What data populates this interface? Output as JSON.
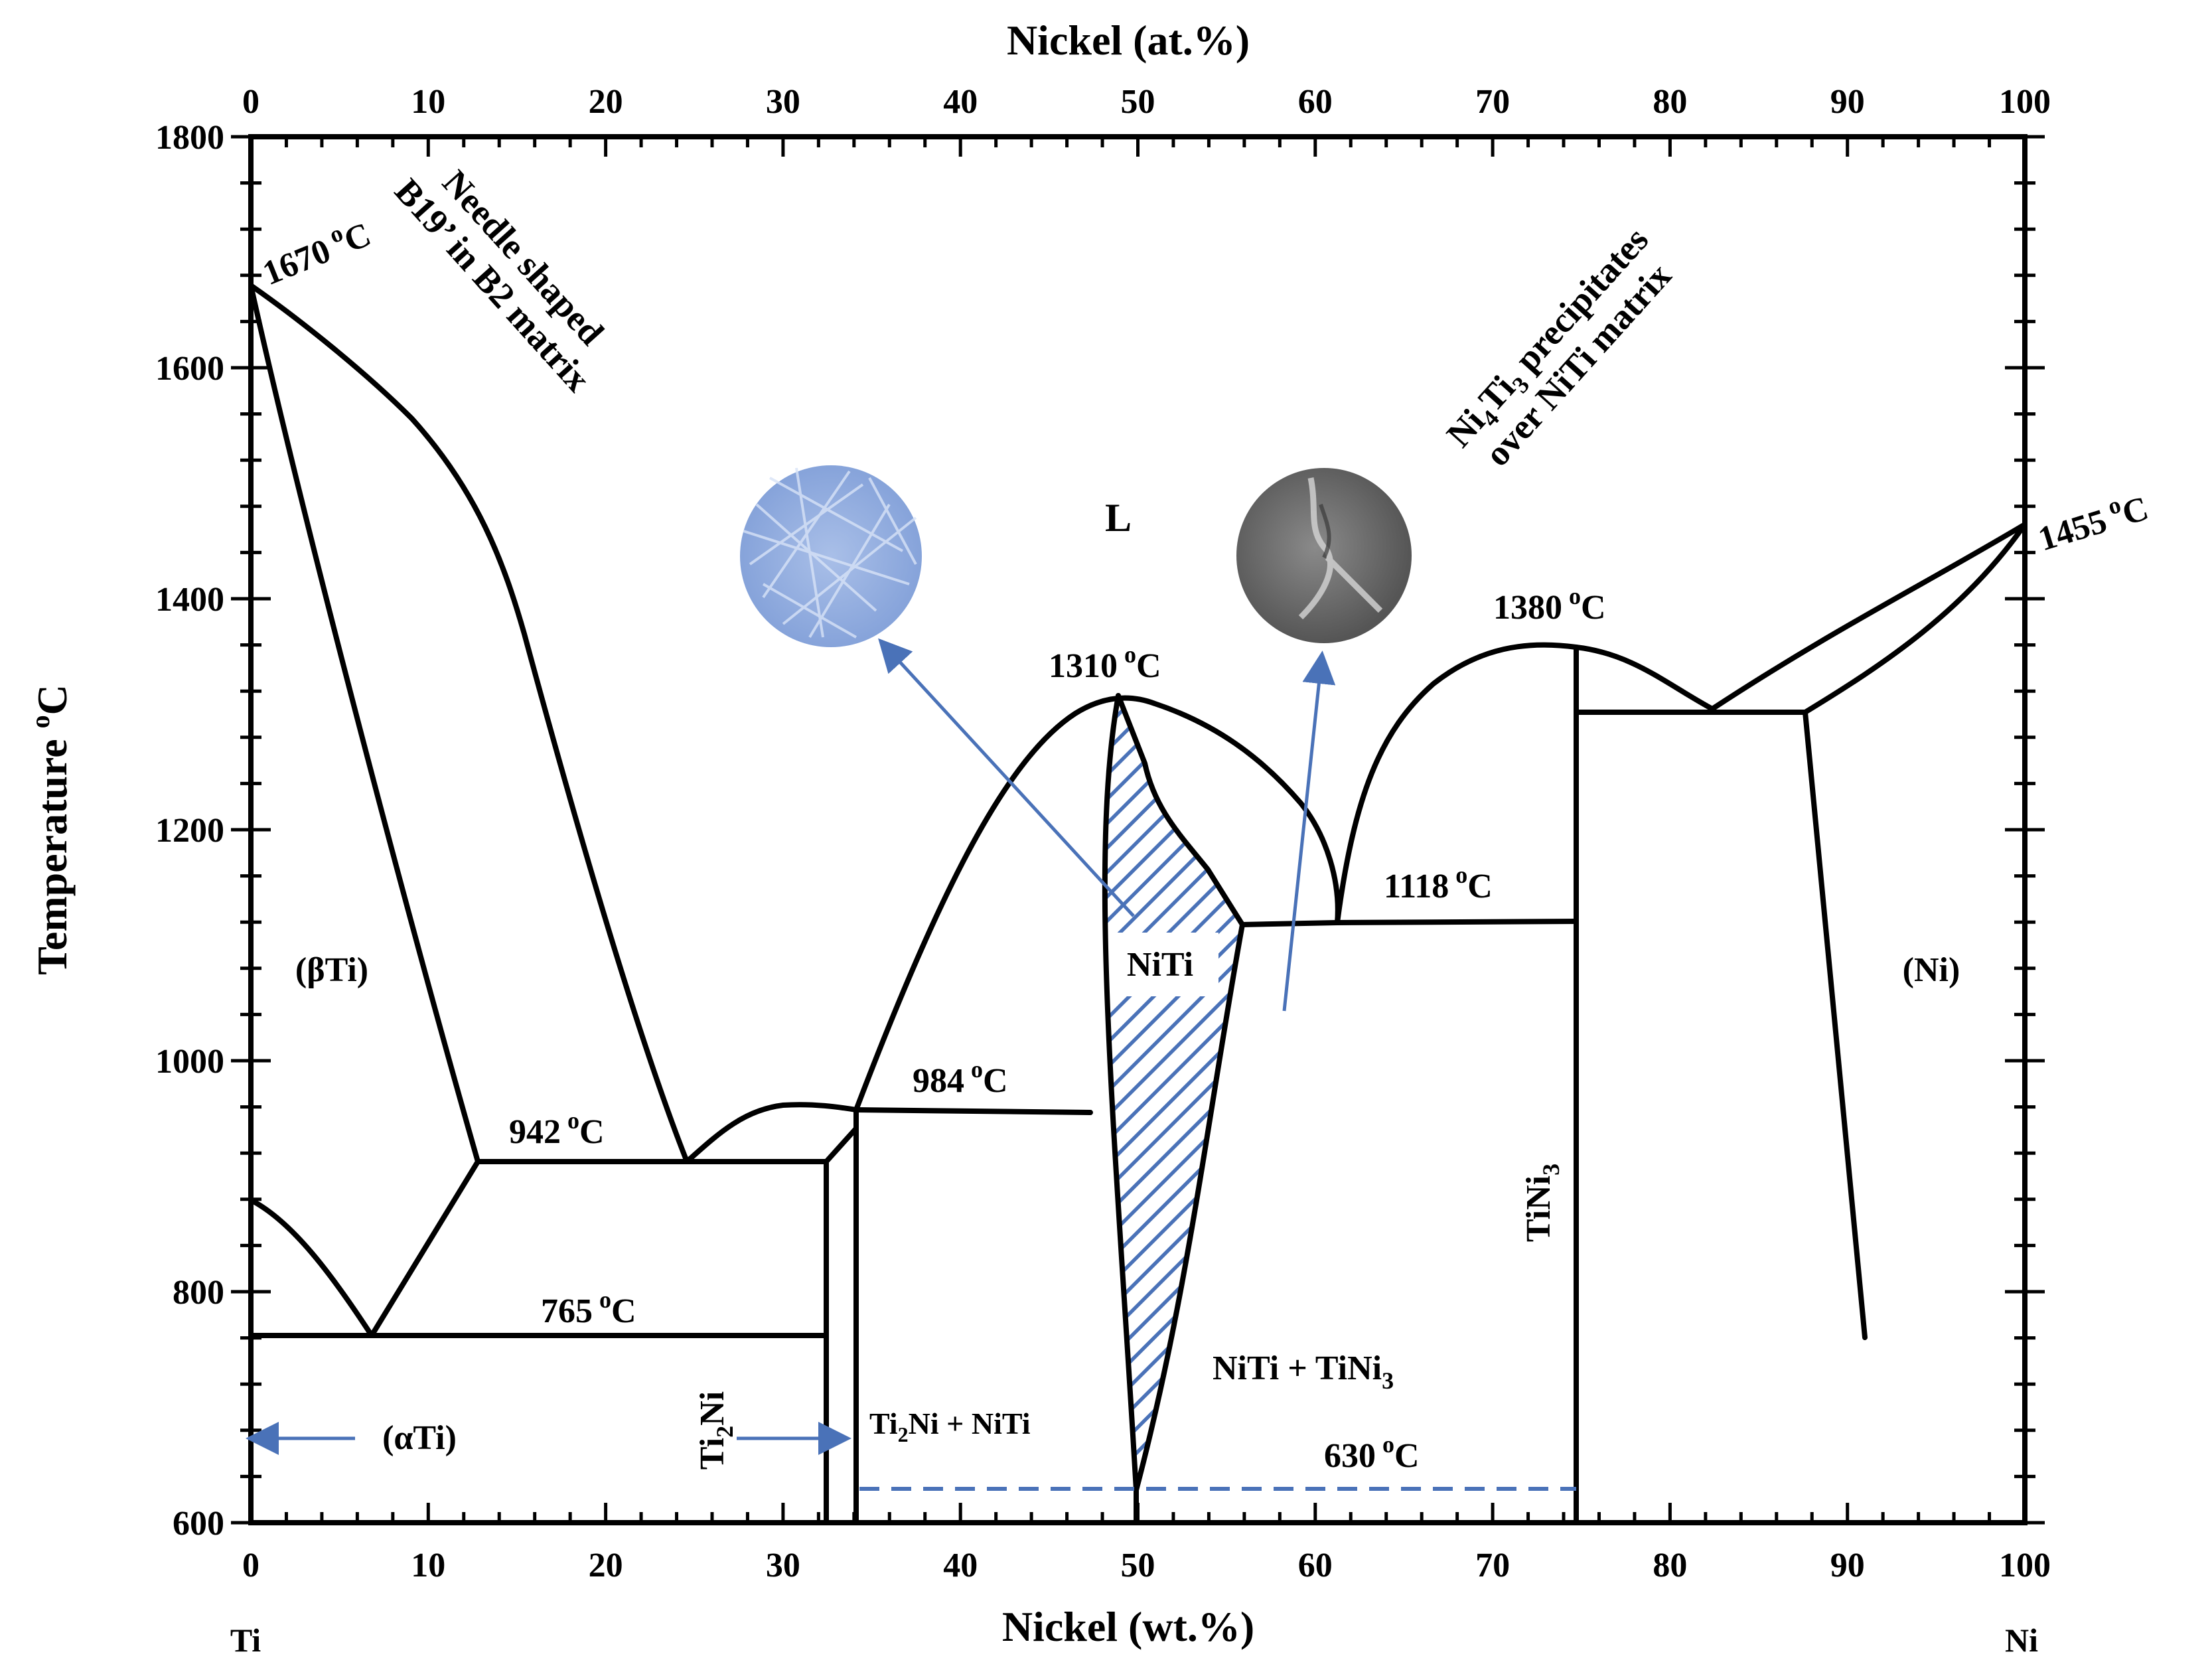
{
  "diagram": {
    "title_top": "Nickel (at.%)",
    "title_bottom": "Nickel (wt.%)",
    "y_axis_title": "Temperature",
    "y_axis_unit_sup": "o",
    "y_axis_unit": "C",
    "x_ticks": [
      "0",
      "10",
      "20",
      "30",
      "40",
      "50",
      "60",
      "70",
      "80",
      "90",
      "100"
    ],
    "y_ticks": [
      "600",
      "800",
      "1000",
      "1200",
      "1400",
      "1600",
      "1800"
    ],
    "element_left": "Ti",
    "element_right": "Ni",
    "colors": {
      "accent_blue": "#4a72b8",
      "line": "#000000",
      "hatch": "#4a72b8"
    }
  },
  "phases": {
    "beta_ti": "(βTi)",
    "alpha_ti": "(αTi)",
    "liquid": "L",
    "niti": "NiTi",
    "ni": "(Ni)",
    "ti2ni_main": "Ti",
    "ti2ni_sub": "2",
    "ti2ni_end": "Ni",
    "ti2ni_niti_a": "Ti",
    "ti2ni_niti_sub": "2",
    "ti2ni_niti_b": "Ni + NiTi",
    "niti_tini3_a": "NiTi + TiNi",
    "niti_tini3_sub": "3",
    "tini3_a": "TiNi",
    "tini3_sub": "3"
  },
  "temperatures": {
    "t1670": "1670",
    "t1455": "1455",
    "t1380": "1380",
    "t1310": "1310",
    "t1118": "1118",
    "t984": "984",
    "t942": "942",
    "t765": "765",
    "t630": "630",
    "deg_sup": "o",
    "deg_c": "C"
  },
  "annotations": {
    "left_line1": "Needle shaped",
    "left_line2": "B19’ in B2 matrix",
    "right_line1_a": "Ni",
    "right_line1_s1": "4",
    "right_line1_b": "Ti",
    "right_line1_s2": "3",
    "right_line1_c": " precipitates",
    "right_line2": "over NiTi matrix"
  }
}
